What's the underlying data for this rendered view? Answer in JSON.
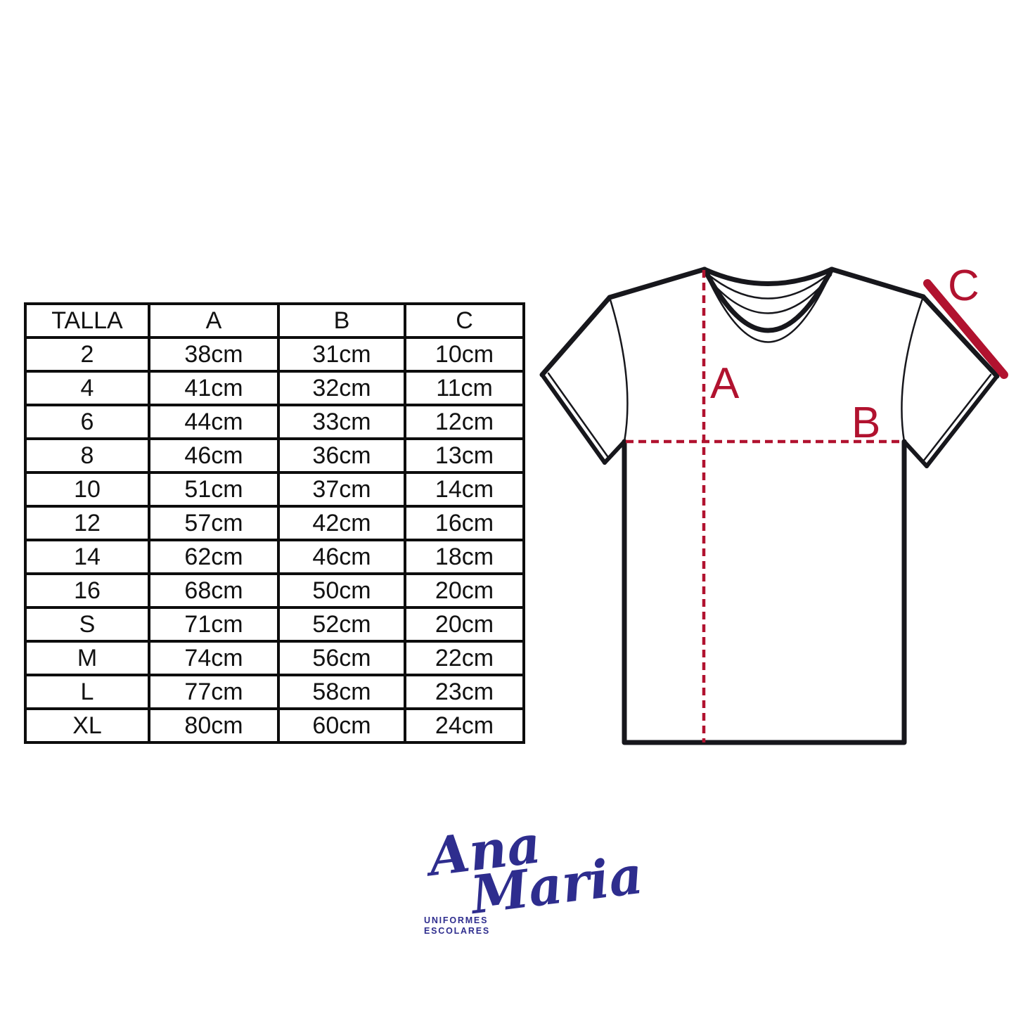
{
  "colors": {
    "measure_red": "#b1122f",
    "outline_black": "#17171c",
    "logo_navy": "#2e2d8e"
  },
  "table": {
    "headers": [
      "TALLA",
      "A",
      "B",
      "C"
    ],
    "rows": [
      [
        "2",
        "38cm",
        "31cm",
        "10cm"
      ],
      [
        "4",
        "41cm",
        "32cm",
        "11cm"
      ],
      [
        "6",
        "44cm",
        "33cm",
        "12cm"
      ],
      [
        "8",
        "46cm",
        "36cm",
        "13cm"
      ],
      [
        "10",
        "51cm",
        "37cm",
        "14cm"
      ],
      [
        "12",
        "57cm",
        "42cm",
        "16cm"
      ],
      [
        "14",
        "62cm",
        "46cm",
        "18cm"
      ],
      [
        "16",
        "68cm",
        "50cm",
        "20cm"
      ],
      [
        "S",
        "71cm",
        "52cm",
        "20cm"
      ],
      [
        "M",
        "74cm",
        "56cm",
        "22cm"
      ],
      [
        "L",
        "77cm",
        "58cm",
        "23cm"
      ],
      [
        "XL",
        "80cm",
        "60cm",
        "24cm"
      ]
    ]
  },
  "diagram": {
    "label_a": "A",
    "label_b": "B",
    "label_c": "C"
  },
  "logo": {
    "script_line1": "Ana",
    "script_line2": "Maria",
    "tagline_line1": "UNIFORMES",
    "tagline_line2": "ESCOLARES"
  },
  "chart_data": {
    "type": "table",
    "title": "",
    "columns": [
      "TALLA",
      "A",
      "B",
      "C"
    ],
    "rows": [
      [
        "2",
        "38cm",
        "31cm",
        "10cm"
      ],
      [
        "4",
        "41cm",
        "32cm",
        "11cm"
      ],
      [
        "6",
        "44cm",
        "33cm",
        "12cm"
      ],
      [
        "8",
        "46cm",
        "36cm",
        "13cm"
      ],
      [
        "10",
        "51cm",
        "37cm",
        "14cm"
      ],
      [
        "12",
        "57cm",
        "42cm",
        "16cm"
      ],
      [
        "14",
        "62cm",
        "46cm",
        "18cm"
      ],
      [
        "16",
        "68cm",
        "50cm",
        "20cm"
      ],
      [
        "S",
        "71cm",
        "52cm",
        "20cm"
      ],
      [
        "M",
        "74cm",
        "56cm",
        "22cm"
      ],
      [
        "L",
        "77cm",
        "58cm",
        "23cm"
      ],
      [
        "XL",
        "80cm",
        "60cm",
        "24cm"
      ]
    ]
  }
}
